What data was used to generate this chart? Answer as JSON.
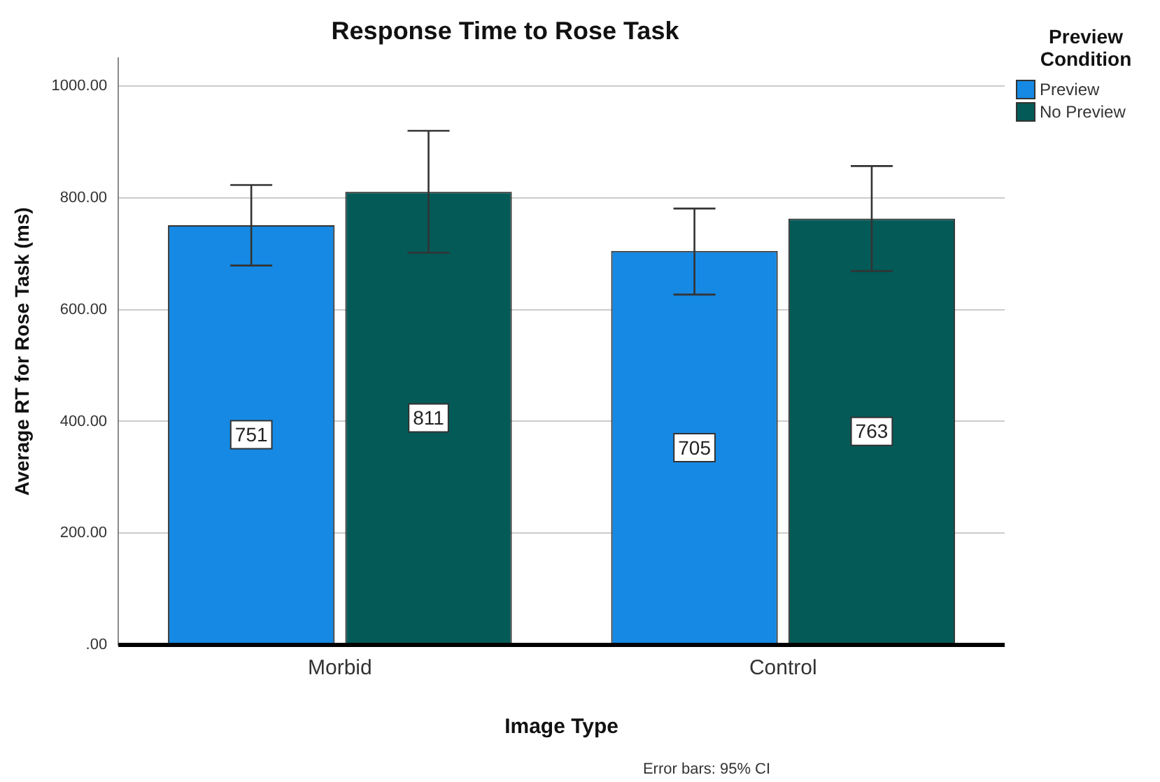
{
  "chart_data": {
    "type": "bar",
    "title": "Response Time to Rose Task",
    "xlabel": "Image Type",
    "ylabel": "Average RT for Rose Task (ms)",
    "legend_title": "Preview Condition",
    "categories": [
      "Morbid",
      "Control"
    ],
    "series": [
      {
        "name": "Preview",
        "color": "#1589e3",
        "values": [
          751,
          705
        ],
        "errors": [
          [
            679,
            823
          ],
          [
            627,
            781
          ]
        ]
      },
      {
        "name": "No Preview",
        "color": "#035a57",
        "values": [
          811,
          763
        ],
        "errors": [
          [
            702,
            920
          ],
          [
            669,
            857
          ]
        ]
      }
    ],
    "ylim": [
      0,
      1050
    ],
    "yticks": [
      {
        "value": 0,
        "label": ".00"
      },
      {
        "value": 200,
        "label": "200.00"
      },
      {
        "value": 400,
        "label": "400.00"
      },
      {
        "value": 600,
        "label": "600.00"
      },
      {
        "value": 800,
        "label": "800.00"
      },
      {
        "value": 1000,
        "label": "1000.00"
      }
    ],
    "grid": "y",
    "legend": "top right",
    "data_labels": true,
    "annotations": [
      "Error bars: 95% CI"
    ]
  }
}
